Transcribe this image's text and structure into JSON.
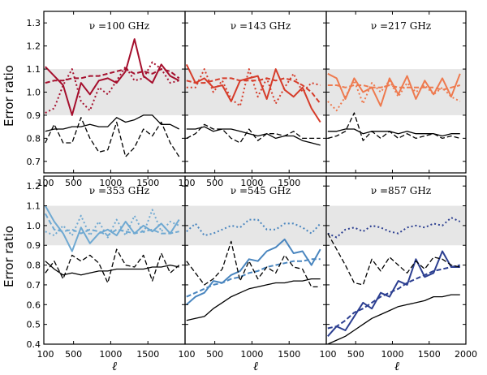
{
  "figure": {
    "ylabel": "Error ratio",
    "xlabel": "ℓ",
    "shade_color": "#e6e6e6",
    "colors": {
      "100 GHz": "#a50f2d",
      "143 GHz": "#d63c2a",
      "217 GHz": "#ee7a4f",
      "353 GHz": "#6fa9d2",
      "545 GHz": "#4a86bf",
      "857 GHz": "#2c3f91",
      "black": "#000000"
    }
  },
  "chart_data": [
    {
      "type": "line",
      "panel": "100 GHz",
      "title": "ν =100 GHz",
      "xlim": [
        100,
        2000
      ],
      "ylim": [
        0.65,
        1.35
      ],
      "shade": [
        0.9,
        1.1
      ],
      "xticks": [
        100,
        500,
        1000,
        1500
      ],
      "yticks": [
        0.7,
        0.8,
        0.9,
        1.0,
        1.1,
        1.2,
        1.3
      ],
      "x": [
        120,
        240,
        360,
        480,
        600,
        720,
        840,
        960,
        1080,
        1200,
        1320,
        1440,
        1560,
        1680,
        1800,
        1920
      ],
      "series": [
        {
          "style": "solid-color",
          "values": [
            1.11,
            1.07,
            1.03,
            0.9,
            1.04,
            0.99,
            1.05,
            1.06,
            1.04,
            1.09,
            1.23,
            1.07,
            1.04,
            1.12,
            1.07,
            1.05
          ]
        },
        {
          "style": "dashed-color",
          "values": [
            1.04,
            1.05,
            1.05,
            1.06,
            1.06,
            1.07,
            1.07,
            1.08,
            1.09,
            1.1,
            1.08,
            1.09,
            1.08,
            1.1,
            1.09,
            1.06
          ]
        },
        {
          "style": "dotted-color",
          "values": [
            0.91,
            0.93,
            1.03,
            1.1,
            0.96,
            0.92,
            1.02,
            0.99,
            1.05,
            1.11,
            1.05,
            1.06,
            1.13,
            1.1,
            1.04,
            1.05
          ]
        },
        {
          "style": "solid-black",
          "values": [
            0.83,
            0.84,
            0.84,
            0.85,
            0.85,
            0.86,
            0.85,
            0.85,
            0.89,
            0.87,
            0.88,
            0.9,
            0.9,
            0.86,
            0.86,
            0.84
          ]
        },
        {
          "style": "dashed-black",
          "values": [
            0.78,
            0.86,
            0.78,
            0.78,
            0.89,
            0.8,
            0.74,
            0.75,
            0.87,
            0.72,
            0.76,
            0.84,
            0.81,
            0.87,
            0.78,
            0.72
          ]
        }
      ]
    },
    {
      "type": "line",
      "panel": "143 GHz",
      "title": "ν =143 GHz",
      "xlim": [
        100,
        2000
      ],
      "ylim": [
        0.65,
        1.35
      ],
      "shade": [
        0.9,
        1.1
      ],
      "xticks": [
        100,
        500,
        1000,
        1500
      ],
      "yticks": [],
      "x": [
        120,
        240,
        360,
        480,
        600,
        720,
        840,
        960,
        1080,
        1200,
        1320,
        1440,
        1560,
        1680,
        1800,
        1920
      ],
      "series": [
        {
          "style": "solid-color",
          "values": [
            1.12,
            1.04,
            1.06,
            1.02,
            1.03,
            0.96,
            1.05,
            1.06,
            1.07,
            0.97,
            1.1,
            1.01,
            0.98,
            1.02,
            0.93,
            0.87
          ]
        },
        {
          "style": "dashed-color",
          "values": [
            1.05,
            1.04,
            1.04,
            1.05,
            1.06,
            1.06,
            1.05,
            1.05,
            1.05,
            1.06,
            1.05,
            1.06,
            1.05,
            1.03,
            1.0,
            0.95
          ]
        },
        {
          "style": "dotted-color",
          "values": [
            1.02,
            1.02,
            1.1,
            1.0,
            1.05,
            0.97,
            0.94,
            1.1,
            0.98,
            1.06,
            0.95,
            1.02,
            1.08,
            1.0,
            1.04,
            1.03
          ]
        },
        {
          "style": "solid-black",
          "values": [
            0.84,
            0.84,
            0.85,
            0.83,
            0.84,
            0.84,
            0.83,
            0.82,
            0.81,
            0.82,
            0.8,
            0.81,
            0.81,
            0.79,
            0.78,
            0.77
          ]
        },
        {
          "style": "dashed-black",
          "values": [
            0.8,
            0.82,
            0.86,
            0.84,
            0.84,
            0.8,
            0.78,
            0.84,
            0.79,
            0.82,
            0.82,
            0.81,
            0.83,
            0.8,
            0.8,
            0.8
          ]
        }
      ]
    },
    {
      "type": "line",
      "panel": "217 GHz",
      "title": "ν =217 GHz",
      "xlim": [
        100,
        2000
      ],
      "ylim": [
        0.65,
        1.35
      ],
      "shade": [
        0.9,
        1.1
      ],
      "xticks": [],
      "yticks": [],
      "x": [
        120,
        240,
        360,
        480,
        600,
        720,
        840,
        960,
        1080,
        1200,
        1320,
        1440,
        1560,
        1680,
        1800,
        1920
      ],
      "series": [
        {
          "style": "solid-color",
          "values": [
            1.08,
            1.06,
            0.97,
            1.06,
            1.0,
            1.02,
            0.94,
            1.06,
            0.99,
            1.07,
            0.97,
            1.05,
            0.99,
            1.06,
            0.98,
            1.08
          ]
        },
        {
          "style": "dashed-color",
          "values": [
            1.03,
            1.03,
            1.02,
            1.03,
            1.03,
            1.02,
            1.02,
            1.03,
            1.02,
            1.02,
            1.02,
            1.02,
            1.02,
            1.01,
            1.02,
            1.03
          ]
        },
        {
          "style": "dotted-color",
          "values": [
            0.96,
            0.92,
            0.98,
            1.05,
            0.95,
            1.04,
            1.0,
            1.05,
            0.98,
            1.04,
            1.0,
            1.03,
            0.99,
            1.02,
            0.98,
            0.96
          ]
        },
        {
          "style": "solid-black",
          "values": [
            0.83,
            0.83,
            0.84,
            0.84,
            0.82,
            0.83,
            0.83,
            0.83,
            0.82,
            0.83,
            0.82,
            0.82,
            0.82,
            0.81,
            0.82,
            0.82
          ]
        },
        {
          "style": "dashed-black",
          "values": [
            0.8,
            0.81,
            0.83,
            0.91,
            0.79,
            0.83,
            0.8,
            0.83,
            0.8,
            0.82,
            0.8,
            0.81,
            0.82,
            0.8,
            0.81,
            0.8
          ]
        }
      ]
    },
    {
      "type": "line",
      "panel": "353 GHz",
      "title": "ν =353 GHz",
      "xlim": [
        100,
        2000
      ],
      "ylim": [
        0.4,
        1.25
      ],
      "shade": [
        0.9,
        1.1
      ],
      "xticks": [
        100,
        500,
        1000,
        1500
      ],
      "yticks": [
        0.4,
        0.5,
        0.6,
        0.7,
        0.8,
        0.9,
        1.0,
        1.1,
        1.2
      ],
      "x": [
        120,
        240,
        360,
        480,
        600,
        720,
        840,
        960,
        1080,
        1200,
        1320,
        1440,
        1560,
        1680,
        1800,
        1920
      ],
      "series": [
        {
          "style": "solid-color",
          "values": [
            1.1,
            1.02,
            0.96,
            0.87,
            0.99,
            0.91,
            0.96,
            0.98,
            0.95,
            1.02,
            0.96,
            1.0,
            0.97,
            1.01,
            0.96,
            1.03
          ]
        },
        {
          "style": "dashed-color",
          "values": [
            1.06,
            0.98,
            0.97,
            0.98,
            0.96,
            0.98,
            0.97,
            0.95,
            0.98,
            0.97,
            0.96,
            0.97,
            0.98,
            0.96,
            0.96,
            0.97
          ]
        },
        {
          "style": "dotted-color",
          "values": [
            0.97,
            0.95,
            1.0,
            0.95,
            1.05,
            0.95,
            1.02,
            0.94,
            1.03,
            0.95,
            1.05,
            0.96,
            1.08,
            0.97,
            1.02,
            1.0
          ]
        },
        {
          "style": "solid-black",
          "values": [
            0.82,
            0.78,
            0.75,
            0.76,
            0.75,
            0.76,
            0.77,
            0.77,
            0.78,
            0.78,
            0.78,
            0.78,
            0.79,
            0.79,
            0.8,
            0.79
          ]
        },
        {
          "style": "dashed-black",
          "values": [
            0.76,
            0.82,
            0.73,
            0.85,
            0.82,
            0.85,
            0.81,
            0.71,
            0.88,
            0.8,
            0.79,
            0.85,
            0.72,
            0.86,
            0.76,
            0.8
          ]
        }
      ]
    },
    {
      "type": "line",
      "panel": "545 GHz",
      "title": "ν =545 GHz",
      "xlim": [
        100,
        2000
      ],
      "ylim": [
        0.4,
        1.25
      ],
      "shade": [
        0.9,
        1.1
      ],
      "xticks": [
        100,
        500,
        1000,
        1500
      ],
      "yticks": [],
      "x": [
        120,
        240,
        360,
        480,
        600,
        720,
        840,
        960,
        1080,
        1200,
        1320,
        1440,
        1560,
        1680,
        1800,
        1920
      ],
      "series": [
        {
          "style": "solid-color",
          "values": [
            0.6,
            0.64,
            0.66,
            0.72,
            0.71,
            0.75,
            0.77,
            0.83,
            0.82,
            0.87,
            0.89,
            0.93,
            0.86,
            0.87,
            0.8,
            0.88
          ]
        },
        {
          "style": "dashed-color",
          "values": [
            0.64,
            0.66,
            0.68,
            0.7,
            0.71,
            0.73,
            0.74,
            0.76,
            0.77,
            0.79,
            0.8,
            0.81,
            0.82,
            0.82,
            0.83,
            0.83
          ]
        },
        {
          "style": "dotted-color",
          "values": [
            0.97,
            1.01,
            0.95,
            0.96,
            0.98,
            1.0,
            0.99,
            1.03,
            1.03,
            0.98,
            0.98,
            1.01,
            1.01,
            0.99,
            0.96,
            1.01
          ]
        },
        {
          "style": "solid-black",
          "values": [
            0.52,
            0.53,
            0.54,
            0.58,
            0.61,
            0.64,
            0.66,
            0.68,
            0.69,
            0.7,
            0.71,
            0.71,
            0.72,
            0.72,
            0.73,
            0.73
          ]
        },
        {
          "style": "dashed-black",
          "values": [
            0.82,
            0.76,
            0.7,
            0.73,
            0.78,
            0.92,
            0.72,
            0.82,
            0.73,
            0.79,
            0.76,
            0.85,
            0.79,
            0.78,
            0.69,
            0.69
          ]
        }
      ]
    },
    {
      "type": "line",
      "panel": "857 GHz",
      "title": "ν =857 GHz",
      "xlim": [
        100,
        2000
      ],
      "ylim": [
        0.4,
        1.25
      ],
      "shade": [
        0.9,
        1.1
      ],
      "xticks": [
        100,
        500,
        1000,
        1500,
        2000
      ],
      "yticks": [],
      "x": [
        120,
        240,
        360,
        480,
        600,
        720,
        840,
        960,
        1080,
        1200,
        1320,
        1440,
        1560,
        1680,
        1800,
        1920
      ],
      "series": [
        {
          "style": "solid-color",
          "values": [
            0.44,
            0.49,
            0.47,
            0.54,
            0.61,
            0.58,
            0.66,
            0.64,
            0.72,
            0.7,
            0.83,
            0.74,
            0.76,
            0.87,
            0.79,
            0.79
          ]
        },
        {
          "style": "dashed-color",
          "values": [
            0.48,
            0.49,
            0.52,
            0.56,
            0.58,
            0.61,
            0.64,
            0.66,
            0.68,
            0.71,
            0.73,
            0.75,
            0.77,
            0.78,
            0.79,
            0.8
          ]
        },
        {
          "style": "dotted-color",
          "values": [
            0.96,
            0.94,
            0.98,
            0.99,
            0.97,
            1.0,
            0.99,
            0.97,
            0.96,
            0.99,
            1.0,
            0.99,
            1.01,
            1.0,
            1.04,
            1.02
          ]
        },
        {
          "style": "solid-black",
          "values": [
            0.4,
            0.42,
            0.44,
            0.47,
            0.5,
            0.53,
            0.55,
            0.57,
            0.59,
            0.6,
            0.61,
            0.62,
            0.64,
            0.64,
            0.65,
            0.65
          ]
        },
        {
          "style": "dashed-black",
          "values": [
            0.96,
            0.88,
            0.8,
            0.71,
            0.7,
            0.83,
            0.77,
            0.84,
            0.8,
            0.76,
            0.82,
            0.78,
            0.84,
            0.83,
            0.8,
            0.79
          ]
        }
      ]
    }
  ]
}
